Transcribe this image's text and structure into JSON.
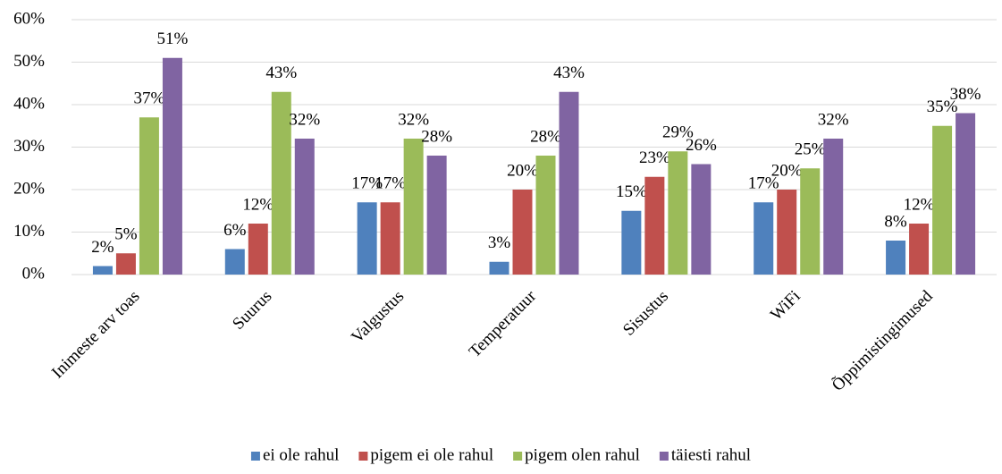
{
  "chart_data": {
    "type": "bar",
    "categories": [
      "Inimeste arv toas",
      "Suurus",
      "Valgustus",
      "Temperatuur",
      "Sisustus",
      "WiFi",
      "Õppimistingimused"
    ],
    "series": [
      {
        "name": "ei ole rahul",
        "color": "#4f81bd",
        "values": [
          2,
          6,
          17,
          3,
          15,
          17,
          8
        ],
        "value_labels": [
          "2%",
          "6%",
          "17%",
          "3%",
          "15%",
          "17%",
          "8%"
        ]
      },
      {
        "name": "pigem ei ole rahul",
        "color": "#c0504d",
        "values": [
          5,
          12,
          17,
          20,
          23,
          20,
          12
        ],
        "value_labels": [
          "5%",
          "12%",
          "17%",
          "20%",
          "23%",
          "20%",
          "12%"
        ]
      },
      {
        "name": "pigem olen rahul",
        "color": "#9bbb59",
        "values": [
          37,
          43,
          32,
          28,
          29,
          25,
          35
        ],
        "value_labels": [
          "37%",
          "43%",
          "32%",
          "28%",
          "29%",
          "25%",
          "35%"
        ]
      },
      {
        "name": "täiesti rahul",
        "color": "#8064a2",
        "values": [
          51,
          32,
          28,
          43,
          26,
          32,
          38
        ],
        "value_labels": [
          "51%",
          "32%",
          "28%",
          "43%",
          "26%",
          "32%",
          "38%"
        ]
      }
    ],
    "ylim": [
      0,
      60
    ],
    "yticks": [
      {
        "value": 0,
        "label": "0%"
      },
      {
        "value": 10,
        "label": "10%"
      },
      {
        "value": 20,
        "label": "20%"
      },
      {
        "value": 30,
        "label": "30%"
      },
      {
        "value": 40,
        "label": "40%"
      },
      {
        "value": 50,
        "label": "50%"
      },
      {
        "value": 60,
        "label": "60%"
      }
    ],
    "grid": true,
    "legend": "bottom"
  }
}
